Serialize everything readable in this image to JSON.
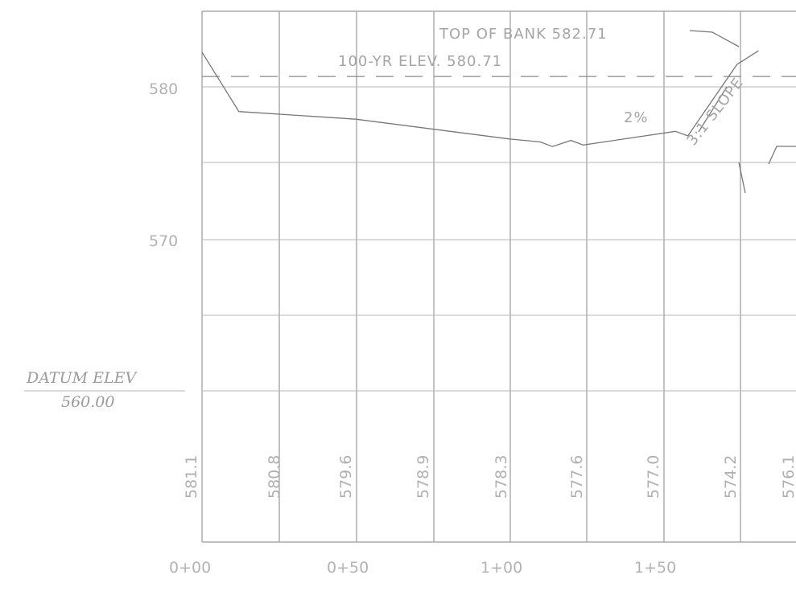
{
  "datum": {
    "label": "DATUM ELEV",
    "value": "560.00"
  },
  "annotations": {
    "top_of_bank": "TOP OF BANK 582.71",
    "hundred_yr": "100-YR ELEV. 580.71",
    "grade": "2%",
    "side_slope": "3:1 SLOPE"
  },
  "chart_data": {
    "type": "line",
    "title": "",
    "xlabel": "",
    "ylabel": "",
    "y_ticks": [
      "580",
      "570"
    ],
    "x_ticks": [
      "0+00",
      "0+50",
      "1+00",
      "1+50"
    ],
    "station_elevations": [
      "581.1",
      "580.8",
      "579.6",
      "578.9",
      "578.3",
      "577.6",
      "577.0",
      "574.2",
      "576.1"
    ],
    "ylim": [
      560,
      585
    ],
    "xlim": [
      0,
      194
    ],
    "grid": true,
    "profile": {
      "x": [
        0,
        12,
        50,
        100,
        110,
        114,
        120,
        124,
        154,
        158,
        174,
        181
      ],
      "y": [
        582.3,
        578.4,
        577.9,
        576.6,
        576.4,
        576.1,
        576.5,
        576.2,
        577.1,
        576.8,
        581.5,
        582.4
      ]
    },
    "water_surface": {
      "elevation": 580.71
    }
  }
}
